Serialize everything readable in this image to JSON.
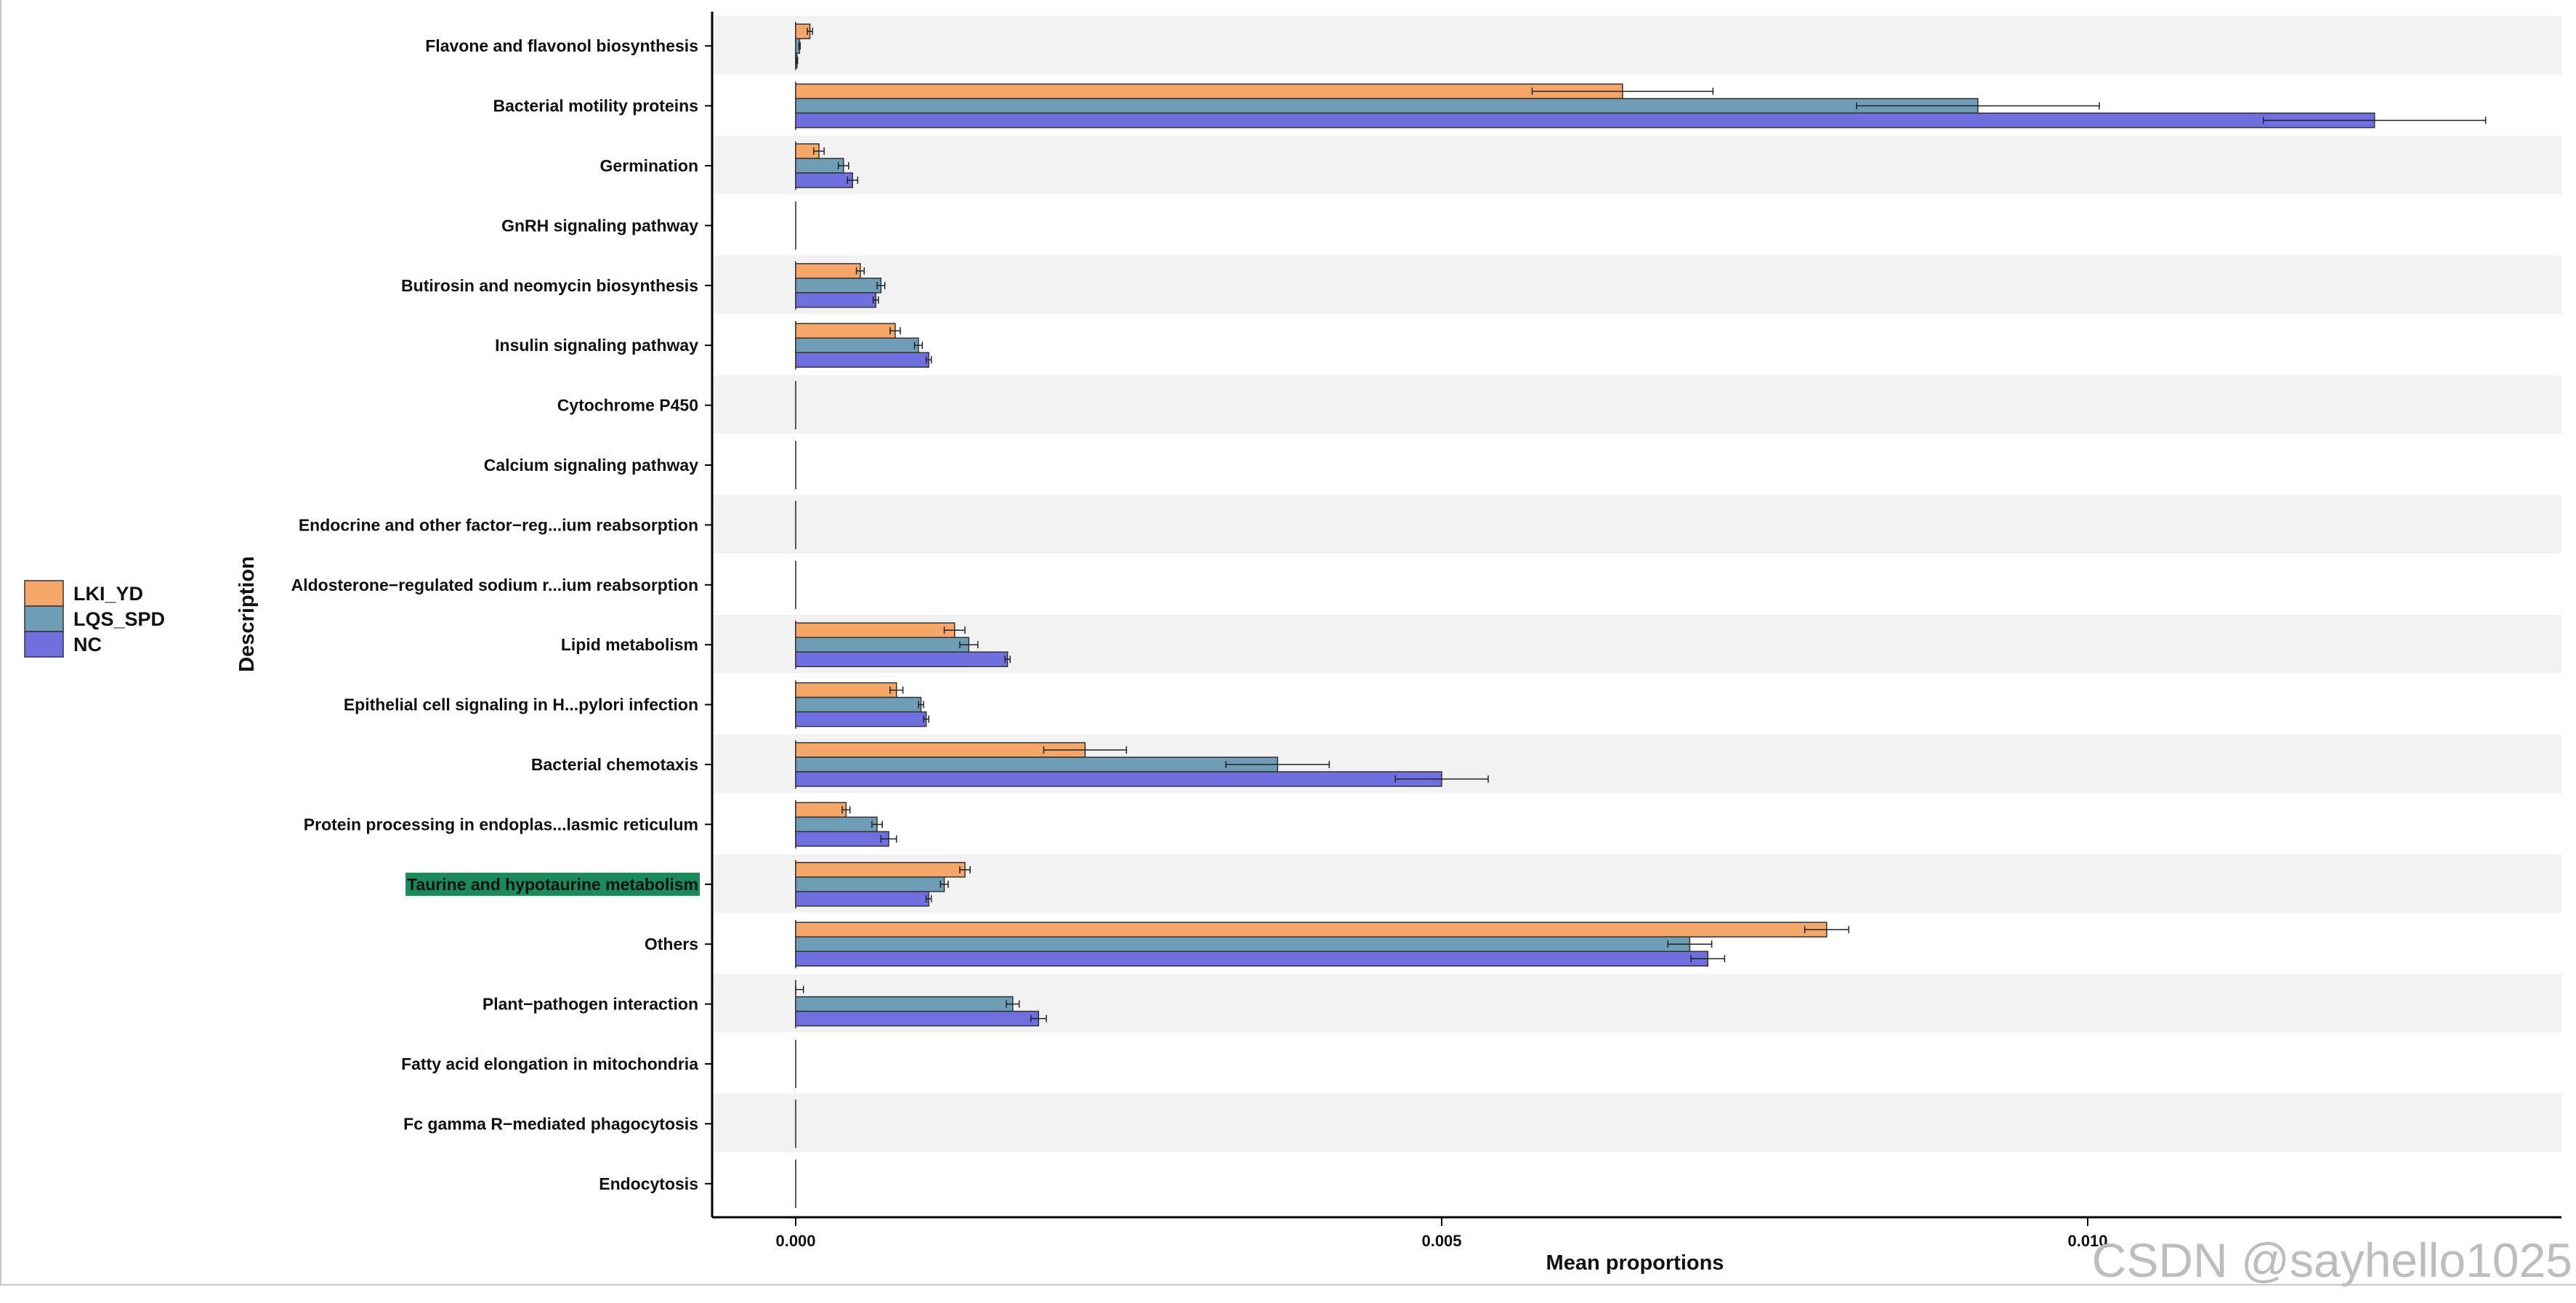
{
  "chart_data": {
    "type": "bar",
    "orientation": "horizontal",
    "xlabel": "Mean proportions",
    "ylabel": "Description",
    "xlim": [
      -0.00065,
      0.0138
    ],
    "xticks": [
      0.0,
      0.005,
      0.01
    ],
    "xtick_labels": [
      "0.000",
      "0.005",
      "0.010"
    ],
    "categories": [
      "Flavone and flavonol biosynthesis",
      "Bacterial motility proteins",
      "Germination",
      "GnRH signaling pathway",
      "Butirosin and neomycin biosynthesis",
      "Insulin signaling pathway",
      "Cytochrome P450",
      "Calcium signaling pathway",
      "Endocrine and other factor−reg...ium reabsorption",
      "Aldosterone−regulated sodium r...ium reabsorption",
      "Lipid metabolism",
      "Epithelial cell signaling in H...pylori infection",
      "Bacterial chemotaxis",
      "Protein processing in endoplas...lasmic reticulum",
      "Taurine and hypotaurine metabolism",
      "Others",
      "Plant−pathogen interaction",
      "Fatty acid elongation in mitochondria",
      "Fc gamma R−mediated phagocytosis",
      "Endocytosis"
    ],
    "highlighted_category": "Taurine and hypotaurine metabolism",
    "highlight_color": "#1a8a5c",
    "series": [
      {
        "name": "LKI_YD",
        "color": "#f5a76a",
        "values": [
          0.00011,
          0.0064,
          0.00018,
          0.0,
          0.0005,
          0.00077,
          0.0,
          0.0,
          0.0,
          0.0,
          0.00123,
          0.00078,
          0.00224,
          0.00039,
          0.00131,
          0.00798,
          0.0,
          0.0,
          0.0,
          0.0
        ],
        "errors": [
          2e-05,
          0.0007,
          4e-05,
          0.0,
          3e-05,
          4e-05,
          0.0,
          0.0,
          0.0,
          0.0,
          8e-05,
          5e-05,
          0.00032,
          3e-05,
          4e-05,
          0.00017,
          6e-05,
          0.0,
          0.0,
          0.0
        ]
      },
      {
        "name": "LQS_SPD",
        "color": "#6e9db5",
        "values": [
          3e-05,
          0.00915,
          0.00037,
          0.0,
          0.00066,
          0.00095,
          0.0,
          0.0,
          0.0,
          0.0,
          0.00134,
          0.00097,
          0.00373,
          0.00063,
          0.00115,
          0.00692,
          0.00168,
          0.0,
          0.0,
          0.0
        ],
        "errors": [
          5e-06,
          0.00094,
          4e-05,
          0.0,
          3e-05,
          3e-05,
          0.0,
          0.0,
          0.0,
          0.0,
          7e-05,
          2e-05,
          0.0004,
          4e-05,
          3e-05,
          0.00017,
          5e-05,
          0.0,
          0.0,
          0.0
        ]
      },
      {
        "name": "NC",
        "color": "#6f6fdf",
        "values": [
          1e-05,
          0.01222,
          0.00044,
          0.0,
          0.00062,
          0.00103,
          0.0,
          0.0,
          0.0,
          0.0,
          0.00164,
          0.00101,
          0.005,
          0.00072,
          0.00103,
          0.00706,
          0.00188,
          0.0,
          0.0,
          0.0
        ],
        "errors": [
          5e-06,
          0.00086,
          4e-05,
          0.0,
          2e-05,
          2e-05,
          0.0,
          0.0,
          0.0,
          0.0,
          2e-05,
          2e-05,
          0.00036,
          6e-05,
          2e-05,
          0.00013,
          6e-05,
          0.0,
          0.0,
          0.0
        ]
      }
    ],
    "legend_placement": "left",
    "band_color": "#f2f2f2",
    "grid": false
  },
  "watermark": "CSDN @sayhello1025"
}
